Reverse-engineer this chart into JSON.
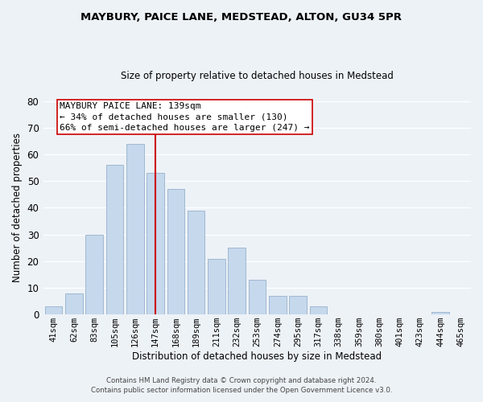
{
  "title": "MAYBURY, PAICE LANE, MEDSTEAD, ALTON, GU34 5PR",
  "subtitle": "Size of property relative to detached houses in Medstead",
  "xlabel": "Distribution of detached houses by size in Medstead",
  "ylabel": "Number of detached properties",
  "bar_labels": [
    "41sqm",
    "62sqm",
    "83sqm",
    "105sqm",
    "126sqm",
    "147sqm",
    "168sqm",
    "189sqm",
    "211sqm",
    "232sqm",
    "253sqm",
    "274sqm",
    "295sqm",
    "317sqm",
    "338sqm",
    "359sqm",
    "380sqm",
    "401sqm",
    "423sqm",
    "444sqm",
    "465sqm"
  ],
  "bar_values": [
    3,
    8,
    30,
    56,
    64,
    53,
    47,
    39,
    21,
    25,
    13,
    7,
    7,
    3,
    0,
    0,
    0,
    0,
    0,
    1,
    0
  ],
  "bar_color": "#c5d8ec",
  "bar_edgecolor": "#a0b8d0",
  "vline_x": 5,
  "vline_color": "#cc0000",
  "ylim": [
    0,
    80
  ],
  "yticks": [
    0,
    10,
    20,
    30,
    40,
    50,
    60,
    70,
    80
  ],
  "annotation_text": "MAYBURY PAICE LANE: 139sqm\n← 34% of detached houses are smaller (130)\n66% of semi-detached houses are larger (247) →",
  "annotation_box_color": "#ffffff",
  "annotation_box_edgecolor": "#cc0000",
  "footer1": "Contains HM Land Registry data © Crown copyright and database right 2024.",
  "footer2": "Contains public sector information licensed under the Open Government Licence v3.0.",
  "background_color": "#edf2f7",
  "grid_color": "#ffffff"
}
